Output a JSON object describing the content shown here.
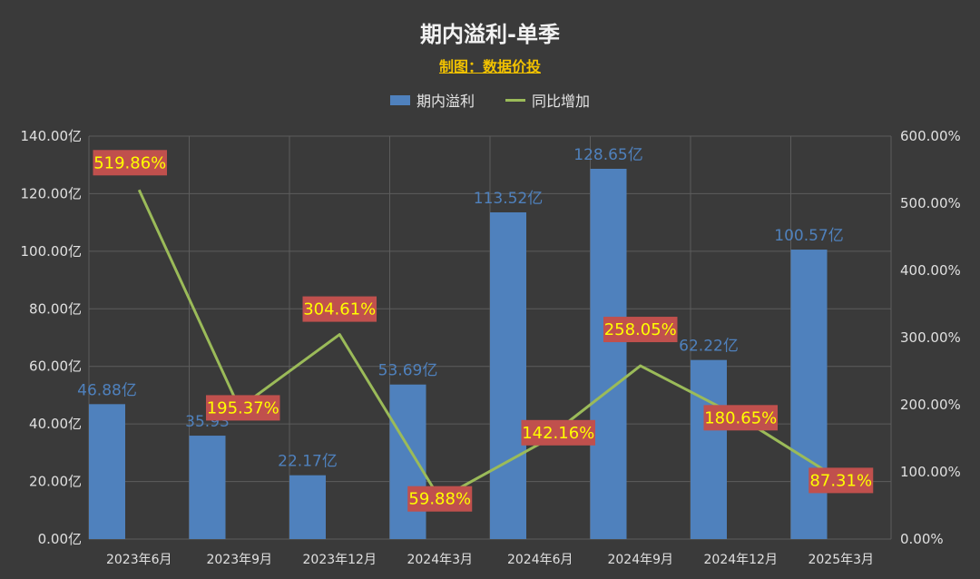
{
  "title": "期内溢利-单季",
  "subtitle": "制图：数据价投",
  "legend": {
    "bar_label": "期内溢利",
    "line_label": "同比增加"
  },
  "colors": {
    "bar": "#4f81bd",
    "line": "#9bbb59",
    "bar_label_text": "#4f81bd",
    "badge_bg": "#c0504d",
    "badge_text": "#ffff00"
  },
  "chart_data": {
    "type": "bar",
    "categories": [
      "2023年6月",
      "2023年9月",
      "2023年12月",
      "2024年3月",
      "2024年6月",
      "2024年9月",
      "2024年12月",
      "2025年3月"
    ],
    "series": [
      {
        "name": "期内溢利",
        "type": "bar",
        "axis": "left",
        "values": [
          46.88,
          35.93,
          22.17,
          53.69,
          113.52,
          128.65,
          62.22,
          100.57
        ],
        "labels": [
          "46.88亿",
          "35.93",
          "22.17亿",
          "53.69亿",
          "113.52亿",
          "128.65亿",
          "62.22亿",
          "100.57亿"
        ]
      },
      {
        "name": "同比增加",
        "type": "line",
        "axis": "right",
        "values": [
          519.86,
          195.37,
          304.61,
          59.88,
          142.16,
          258.05,
          180.65,
          87.31
        ],
        "labels": [
          "519.86%",
          "195.37%",
          "304.61%",
          "59.88%",
          "142.16%",
          "258.05%",
          "180.65%",
          "87.31%"
        ]
      }
    ],
    "left_axis": {
      "ylim": [
        0,
        140
      ],
      "ticks": [
        "0.00亿",
        "20.00亿",
        "40.00亿",
        "60.00亿",
        "80.00亿",
        "100.00亿",
        "120.00亿",
        "140.00亿"
      ]
    },
    "right_axis": {
      "ylim": [
        0,
        600
      ],
      "ticks": [
        "0.00%",
        "100.00%",
        "200.00%",
        "300.00%",
        "400.00%",
        "500.00%",
        "600.00%"
      ]
    },
    "grid": true,
    "legend_position": "top-center"
  }
}
